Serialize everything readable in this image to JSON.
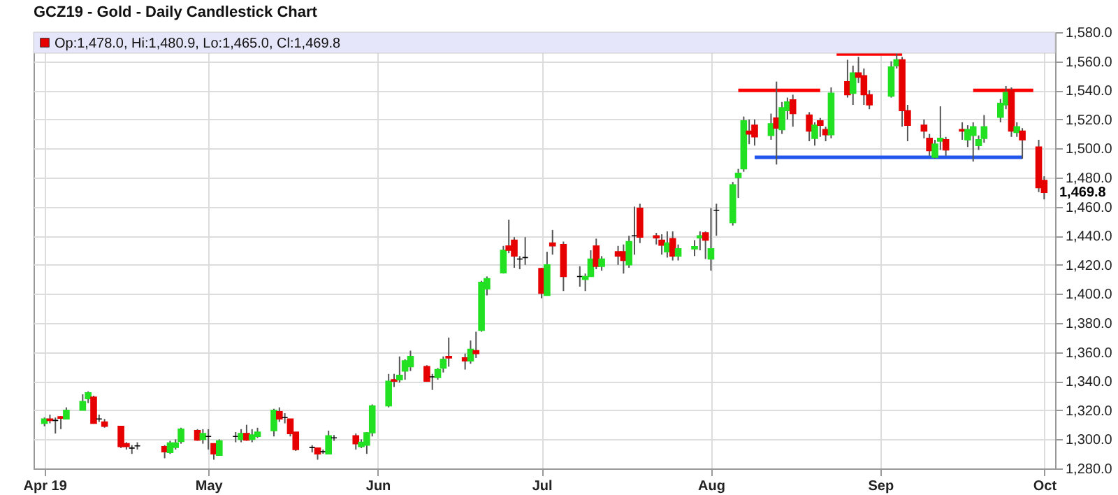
{
  "chart_data": {
    "type": "candlestick",
    "title": "GCZ19 - Gold - Daily Candlestick Chart",
    "x": [
      "2019-04-01",
      "2019-04-02",
      "2019-04-03",
      "2019-04-04",
      "2019-04-05",
      "2019-04-08",
      "2019-04-09",
      "2019-04-10",
      "2019-04-11",
      "2019-04-12",
      "2019-04-15",
      "2019-04-16",
      "2019-04-17",
      "2019-04-18",
      "2019-04-23",
      "2019-04-24",
      "2019-04-25",
      "2019-04-26",
      "2019-04-29",
      "2019-04-30",
      "2019-05-01",
      "2019-05-02",
      "2019-05-03",
      "2019-05-06",
      "2019-05-07",
      "2019-05-08",
      "2019-05-09",
      "2019-05-10",
      "2019-05-13",
      "2019-05-14",
      "2019-05-15",
      "2019-05-16",
      "2019-05-17",
      "2019-05-20",
      "2019-05-21",
      "2019-05-22",
      "2019-05-23",
      "2019-05-24",
      "2019-05-28",
      "2019-05-29",
      "2019-05-30",
      "2019-05-31",
      "2019-06-03",
      "2019-06-04",
      "2019-06-05",
      "2019-06-06",
      "2019-06-07",
      "2019-06-10",
      "2019-06-11",
      "2019-06-12",
      "2019-06-13",
      "2019-06-14",
      "2019-06-17",
      "2019-06-18",
      "2019-06-19",
      "2019-06-20",
      "2019-06-21",
      "2019-06-24",
      "2019-06-25",
      "2019-06-26",
      "2019-06-27",
      "2019-06-28",
      "2019-07-01",
      "2019-07-02",
      "2019-07-03",
      "2019-07-05",
      "2019-07-08",
      "2019-07-09",
      "2019-07-10",
      "2019-07-11",
      "2019-07-12",
      "2019-07-15",
      "2019-07-16",
      "2019-07-17",
      "2019-07-18",
      "2019-07-19",
      "2019-07-22",
      "2019-07-23",
      "2019-07-24",
      "2019-07-25",
      "2019-07-26",
      "2019-07-29",
      "2019-07-30",
      "2019-07-31",
      "2019-08-01",
      "2019-08-02",
      "2019-08-05",
      "2019-08-06",
      "2019-08-07",
      "2019-08-08",
      "2019-08-09",
      "2019-08-12",
      "2019-08-13",
      "2019-08-14",
      "2019-08-15",
      "2019-08-16",
      "2019-08-19",
      "2019-08-20",
      "2019-08-21",
      "2019-08-22",
      "2019-08-23",
      "2019-08-26",
      "2019-08-27",
      "2019-08-28",
      "2019-08-29",
      "2019-08-30",
      "2019-09-03",
      "2019-09-04",
      "2019-09-05",
      "2019-09-06",
      "2019-09-09",
      "2019-09-10",
      "2019-09-11",
      "2019-09-12",
      "2019-09-13",
      "2019-09-16",
      "2019-09-17",
      "2019-09-18",
      "2019-09-19",
      "2019-09-20",
      "2019-09-23",
      "2019-09-24",
      "2019-09-25",
      "2019-09-26",
      "2019-09-27",
      "2019-09-30",
      "2019-10-01"
    ],
    "ohlc": [
      [
        1311,
        1315,
        1309,
        1314
      ],
      [
        1314,
        1317,
        1311,
        1313
      ],
      [
        1313,
        1315,
        1304,
        1313
      ],
      [
        1315.5,
        1316,
        1307,
        1314.5
      ],
      [
        1314,
        1322,
        1314,
        1320
      ],
      [
        1320,
        1331,
        1320,
        1326
      ],
      [
        1328,
        1333,
        1325,
        1332
      ],
      [
        1329,
        1330,
        1311,
        1311
      ],
      [
        1314,
        1317,
        1312,
        1314
      ],
      [
        1312,
        1314,
        1308,
        1309
      ],
      [
        1309,
        1309,
        1294,
        1295
      ],
      [
        1297,
        1298,
        1293,
        1295
      ],
      [
        1294,
        1296,
        1290,
        1294
      ],
      [
        1295.5,
        1298,
        1293,
        1295.5
      ],
      [
        1295,
        1296,
        1287,
        1291.5
      ],
      [
        1291,
        1299,
        1290,
        1297.5
      ],
      [
        1294.5,
        1300,
        1293,
        1297.5
      ],
      [
        1298.5,
        1308,
        1297,
        1307
      ],
      [
        1306,
        1307,
        1299,
        1299.5
      ],
      [
        1300,
        1307,
        1297,
        1304
      ],
      [
        1302,
        1307,
        1293,
        1302
      ],
      [
        1297,
        1297,
        1286,
        1290
      ],
      [
        1289,
        1300,
        1289,
        1299
      ],
      [
        1302,
        1305,
        1298,
        1302
      ],
      [
        1300,
        1307,
        1298,
        1304
      ],
      [
        1304,
        1310,
        1299,
        1299.5
      ],
      [
        1300,
        1307,
        1298,
        1303
      ],
      [
        1302,
        1308,
        1301,
        1305
      ],
      [
        1306,
        1321,
        1302,
        1320
      ],
      [
        1319,
        1322,
        1312,
        1314
      ],
      [
        1315,
        1318,
        1311,
        1315
      ],
      [
        1314,
        1314,
        1302,
        1304
      ],
      [
        1305,
        1305,
        1292,
        1293
      ],
      [
        1294.5,
        1296,
        1291,
        1294.5
      ],
      [
        1294,
        1294,
        1286,
        1290
      ],
      [
        1291.5,
        1293,
        1290,
        1291.5
      ],
      [
        1290,
        1306,
        1290,
        1302.5
      ],
      [
        1301,
        1303,
        1299,
        1301
      ],
      [
        1302.5,
        1304,
        1293,
        1297
      ],
      [
        1295,
        1300,
        1294,
        1298
      ],
      [
        1296,
        1305,
        1290,
        1304.5
      ],
      [
        1304.5,
        1324,
        1302,
        1323
      ],
      [
        1323,
        1345,
        1322,
        1340
      ],
      [
        1341,
        1345,
        1336,
        1340
      ],
      [
        1341,
        1357,
        1339,
        1344
      ],
      [
        1347,
        1355,
        1341,
        1354
      ],
      [
        1350,
        1361,
        1347,
        1357
      ],
      [
        1350,
        1351,
        1340,
        1340
      ],
      [
        1343,
        1345,
        1334,
        1343
      ],
      [
        1342.5,
        1349,
        1341,
        1348
      ],
      [
        1349,
        1357,
        1346,
        1355
      ],
      [
        1357,
        1370,
        1350,
        1356
      ],
      [
        1356,
        1359,
        1348,
        1354
      ],
      [
        1354,
        1368,
        1352,
        1362
      ],
      [
        1361,
        1374,
        1356,
        1359
      ],
      [
        1375,
        1409,
        1374,
        1408
      ],
      [
        1403.5,
        1412,
        1399,
        1410.5
      ],
      [
        1414.5,
        1433,
        1414,
        1430
      ],
      [
        1433,
        1451,
        1428,
        1430
      ],
      [
        1437,
        1439,
        1418,
        1426
      ],
      [
        1424,
        1426,
        1417,
        1424
      ],
      [
        1425,
        1439,
        1420,
        1425
      ],
      [
        1417.5,
        1418,
        1397,
        1400.5
      ],
      [
        1399,
        1429,
        1399,
        1420
      ],
      [
        1435,
        1444,
        1427,
        1433
      ],
      [
        1434,
        1436,
        1402,
        1412
      ],
      [
        1412,
        1419,
        1405,
        1412
      ],
      [
        1410,
        1414,
        1402,
        1412
      ],
      [
        1412,
        1430,
        1412,
        1424
      ],
      [
        1433,
        1438,
        1417,
        1419
      ],
      [
        1419,
        1426,
        1416,
        1424
      ],
      [
        1429,
        1433,
        1420,
        1426
      ],
      [
        1429,
        1434,
        1414,
        1423
      ],
      [
        1420,
        1440,
        1418,
        1436
      ],
      [
        1440,
        1460,
        1427,
        1440
      ],
      [
        1459,
        1462,
        1435,
        1439
      ],
      [
        1440,
        1442,
        1434,
        1438.5
      ],
      [
        1437,
        1441,
        1427,
        1433.5
      ],
      [
        1429,
        1443,
        1425,
        1435
      ],
      [
        1438,
        1443,
        1423,
        1426
      ],
      [
        1426,
        1434,
        1423,
        1431
      ],
      [
        1431,
        1437,
        1426,
        1432.5
      ],
      [
        1438.5,
        1443,
        1430,
        1440
      ],
      [
        1442,
        1443,
        1424,
        1437
      ],
      [
        1424,
        1459,
        1416,
        1431
      ],
      [
        1457.5,
        1462,
        1440,
        1457.5
      ],
      [
        1449,
        1477,
        1447,
        1475
      ],
      [
        1480,
        1486,
        1466,
        1483
      ],
      [
        1486,
        1522,
        1484,
        1519
      ],
      [
        1512,
        1520,
        1503,
        1510
      ],
      [
        1516,
        1520,
        1502,
        1508
      ],
      [
        1509,
        1524,
        1506,
        1517
      ],
      [
        1521,
        1546,
        1489,
        1514
      ],
      [
        1513,
        1532,
        1510,
        1528
      ],
      [
        1526,
        1535,
        1520,
        1532
      ],
      [
        1533.5,
        1537,
        1515,
        1524
      ],
      [
        1523,
        1525,
        1505,
        1512
      ],
      [
        1507,
        1518,
        1502,
        1516
      ],
      [
        1519,
        1521,
        1508,
        1516
      ],
      [
        1513,
        1515,
        1505,
        1509.5
      ],
      [
        1509.5,
        1542,
        1507,
        1538
      ],
      [
        1546,
        1561,
        1535,
        1537
      ],
      [
        1538,
        1557,
        1530,
        1552
      ],
      [
        1552,
        1563,
        1545,
        1549
      ],
      [
        1550,
        1555,
        1530,
        1537
      ],
      [
        1537,
        1540,
        1527,
        1530
      ],
      [
        1536,
        1560,
        1535,
        1556
      ],
      [
        1557,
        1567,
        1555,
        1561
      ],
      [
        1561,
        1563,
        1515,
        1526
      ],
      [
        1526,
        1530,
        1505,
        1516
      ],
      [
        1516,
        1520,
        1507,
        1512
      ],
      [
        1507,
        1510,
        1495,
        1498.5
      ],
      [
        1494,
        1506,
        1493,
        1503
      ],
      [
        1505,
        1529,
        1499,
        1507
      ],
      [
        1506,
        1508,
        1495,
        1499
      ],
      [
        1513,
        1518,
        1506,
        1512
      ],
      [
        1506,
        1516,
        1501,
        1513
      ],
      [
        1509,
        1518,
        1491,
        1515
      ],
      [
        1502,
        1509,
        1499,
        1506
      ],
      [
        1507,
        1523,
        1504,
        1515
      ],
      [
        1521.5,
        1534,
        1518,
        1531
      ],
      [
        1530,
        1543,
        1527,
        1538.5
      ],
      [
        1540,
        1542,
        1508,
        1512
      ],
      [
        1511,
        1518,
        1508,
        1515
      ],
      [
        1512,
        1514,
        1493,
        1506
      ],
      [
        1501,
        1506,
        1470,
        1473
      ],
      [
        1478,
        1480.9,
        1465,
        1469.8
      ]
    ],
    "colors": [
      "#22e022",
      "#e60000",
      "#000000",
      "#e60000",
      "#22e022",
      "#22e022",
      "#22e022",
      "#e60000",
      "#000000",
      "#e60000",
      "#e60000",
      "#e60000",
      "#000000",
      "#000000",
      "#e60000",
      "#22e022",
      "#22e022",
      "#22e022",
      "#e60000",
      "#22e022",
      "#000000",
      "#e60000",
      "#22e022",
      "#000000",
      "#22e022",
      "#e60000",
      "#22e022",
      "#22e022",
      "#22e022",
      "#e60000",
      "#000000",
      "#e60000",
      "#e60000",
      "#000000",
      "#e60000",
      "#000000",
      "#22e022",
      "#000000",
      "#e60000",
      "#22e022",
      "#22e022",
      "#22e022",
      "#22e022",
      "#e60000",
      "#22e022",
      "#22e022",
      "#22e022",
      "#e60000",
      "#000000",
      "#22e022",
      "#22e022",
      "#e60000",
      "#e60000",
      "#22e022",
      "#e60000",
      "#22e022",
      "#22e022",
      "#22e022",
      "#e60000",
      "#e60000",
      "#000000",
      "#000000",
      "#e60000",
      "#22e022",
      "#e60000",
      "#e60000",
      "#000000",
      "#22e022",
      "#22e022",
      "#e60000",
      "#22e022",
      "#e60000",
      "#e60000",
      "#22e022",
      "#000000",
      "#e60000",
      "#e60000",
      "#e60000",
      "#22e022",
      "#e60000",
      "#22e022",
      "#22e022",
      "#22e022",
      "#e60000",
      "#22e022",
      "#000000",
      "#22e022",
      "#22e022",
      "#22e022",
      "#e60000",
      "#e60000",
      "#22e022",
      "#e60000",
      "#22e022",
      "#22e022",
      "#e60000",
      "#e60000",
      "#22e022",
      "#e60000",
      "#e60000",
      "#22e022",
      "#e60000",
      "#22e022",
      "#e60000",
      "#e60000",
      "#e60000",
      "#22e022",
      "#22e022",
      "#e60000",
      "#e60000",
      "#e60000",
      "#e60000",
      "#22e022",
      "#22e022",
      "#e60000",
      "#e60000",
      "#22e022",
      "#22e022",
      "#22e022",
      "#22e022",
      "#22e022",
      "#22e022",
      "#e60000",
      "#22e022",
      "#e60000",
      "#e60000",
      "#e60000"
    ],
    "series": [
      {
        "type": "line",
        "color": "#ff0000",
        "x": [
          "2019-08-06",
          "2019-08-21"
        ],
        "values": [
          1540,
          1540
        ]
      },
      {
        "type": "line",
        "color": "#ff0000",
        "x": [
          "2019-08-24",
          "2019-09-05"
        ],
        "values": [
          1565,
          1565
        ]
      },
      {
        "type": "line",
        "color": "#ff0000",
        "x": [
          "2019-09-18",
          "2019-09-29"
        ],
        "values": [
          1540,
          1540
        ]
      },
      {
        "type": "line",
        "color": "#2255ee",
        "x": [
          "2019-08-09",
          "2019-09-27"
        ],
        "values": [
          1494,
          1494
        ]
      }
    ],
    "xlim": [
      "2019-03-30",
      "2019-10-03"
    ],
    "xticks": [
      {
        "value": "2019-04-01",
        "label": "Apr 19"
      },
      {
        "value": "2019-05-01",
        "label": "May"
      },
      {
        "value": "2019-06-01",
        "label": "Jun"
      },
      {
        "value": "2019-07-01",
        "label": "Jul"
      },
      {
        "value": "2019-08-01",
        "label": "Aug"
      },
      {
        "value": "2019-09-01",
        "label": "Sep"
      },
      {
        "value": "2019-10-01",
        "label": "Oct"
      }
    ],
    "ylim": [
      1280,
      1580
    ],
    "yticks": [
      {
        "value": 1280,
        "label": "1,280.0"
      },
      {
        "value": 1300,
        "label": "1,300.0"
      },
      {
        "value": 1320,
        "label": "1,320.0"
      },
      {
        "value": 1340,
        "label": "1,340.0"
      },
      {
        "value": 1360,
        "label": "1,360.0"
      },
      {
        "value": 1380,
        "label": "1,380.0"
      },
      {
        "value": 1400,
        "label": "1,400.0"
      },
      {
        "value": 1420,
        "label": "1,420.0"
      },
      {
        "value": 1440,
        "label": "1,440.0"
      },
      {
        "value": 1460,
        "label": "1,460.0"
      },
      {
        "value": 1480,
        "label": "1,480.0"
      },
      {
        "value": 1500,
        "label": "1,500.0"
      },
      {
        "value": 1520,
        "label": "1,520.0"
      },
      {
        "value": 1540,
        "label": "1,540.0"
      },
      {
        "value": 1560,
        "label": "1,560.0"
      },
      {
        "value": 1580,
        "label": "1,580.0"
      }
    ],
    "grid": true,
    "annotations": [
      "Op:1,478.0, Hi:1,480.9, Lo:1,465.0, Cl:1,469.8",
      "1,469.8"
    ]
  }
}
